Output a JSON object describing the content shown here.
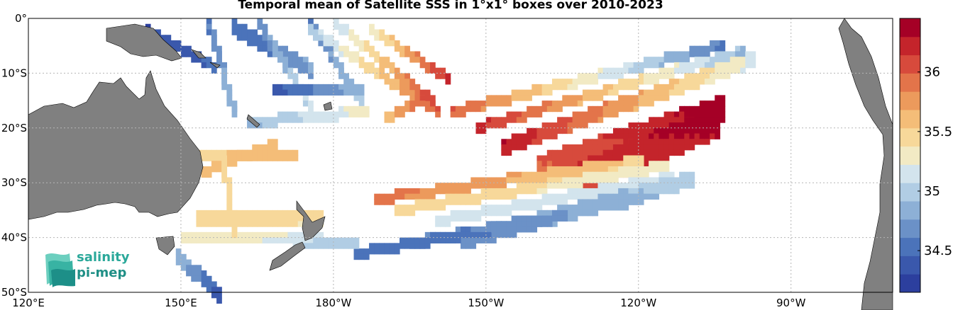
{
  "title": "Temporal mean of Satellite SSS in 1°x1° boxes over 2010-2023",
  "x_ticks": [
    "120°E",
    "150°E",
    "180°W",
    "150°W",
    "120°W",
    "90°W"
  ],
  "y_ticks": [
    "0°",
    "10°S",
    "20°S",
    "30°S",
    "40°S",
    "50°S"
  ],
  "colorbar": {
    "ticks": [
      "34.5",
      "35",
      "35.5",
      "36"
    ],
    "min": 34.15,
    "max": 36.45,
    "colors": [
      "#2c3f9e",
      "#3a58ac",
      "#4b73ba",
      "#6b91c7",
      "#8db0d6",
      "#b1cde4",
      "#d3e4ed",
      "#f2eac4",
      "#f7d89a",
      "#f4bd78",
      "#ec9a5c",
      "#e3744a",
      "#d74a3c",
      "#c4242b",
      "#a50026"
    ]
  },
  "logo": {
    "line1": "salinity",
    "line2": "pi-mep"
  },
  "colors": {
    "land": "#808080",
    "grid": "#b5b5b5"
  }
}
